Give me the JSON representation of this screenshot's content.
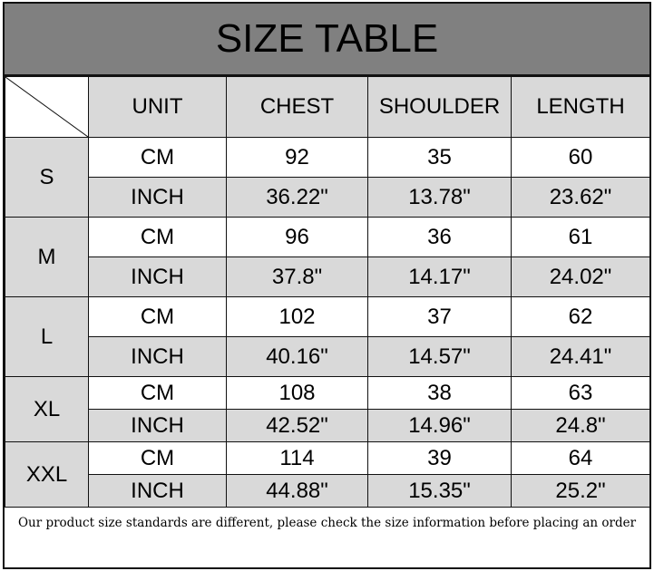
{
  "title": "SIZE TABLE",
  "headers": [
    "UNIT",
    "CHEST",
    "SHOULDER",
    "LENGTH"
  ],
  "sizes": [
    {
      "size": "S",
      "rows": [
        [
          "CM",
          "92",
          "35",
          "60"
        ],
        [
          "INCH",
          "36.22\"",
          "13.78\"",
          "23.62\""
        ]
      ]
    },
    {
      "size": "M",
      "rows": [
        [
          "CM",
          "96",
          "36",
          "61"
        ],
        [
          "INCH",
          "37.8\"",
          "14.17\"",
          "24.02\""
        ]
      ]
    },
    {
      "size": "L",
      "rows": [
        [
          "CM",
          "102",
          "37",
          "62"
        ],
        [
          "INCH",
          "40.16\"",
          "14.57\"",
          "24.41\""
        ]
      ]
    },
    {
      "size": "XL",
      "rows": [
        [
          "CM",
          "108",
          "38",
          "63"
        ],
        [
          "INCH",
          "42.52\"",
          "14.96\"",
          "24.8\""
        ]
      ]
    },
    {
      "size": "XXL",
      "rows": [
        [
          "CM",
          "114",
          "39",
          "64"
        ],
        [
          "INCH",
          "44.88\"",
          "15.35\"",
          "25.2\""
        ]
      ]
    }
  ],
  "footer_note": "Our product size standards are different, please check the size information before placing an order",
  "colors": {
    "title_bg": "#808080",
    "header_bg": "#d9d9d9",
    "alt_row_bg": "#d9d9d9"
  }
}
